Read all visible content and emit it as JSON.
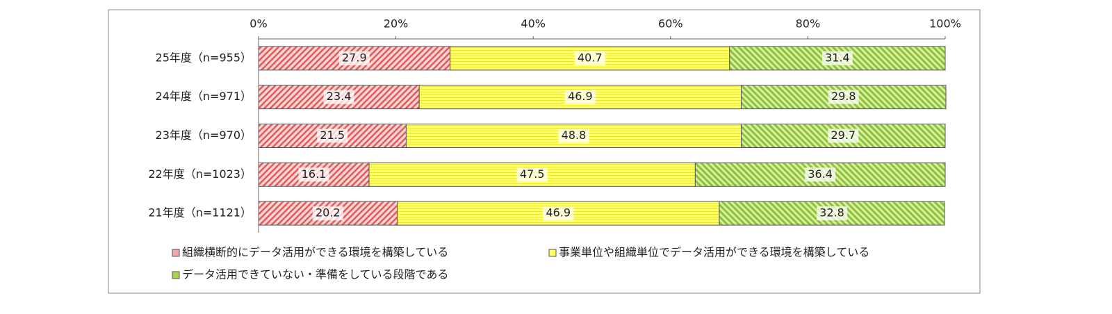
{
  "chart_data": {
    "type": "stacked-bar-horizontal",
    "categories": [
      "25年度（n=955）",
      "24年度（n=971）",
      "23年度（n=970）",
      "22年度（n=1023）",
      "21年度（n=1121）"
    ],
    "series": [
      {
        "name": "組織横断的にデータ活用ができる環境を構築している",
        "color": "#f4a6a6",
        "values": [
          27.9,
          23.4,
          21.5,
          16.1,
          20.2
        ]
      },
      {
        "name": "事業単位や組織単位でデータ活用ができる環境を構築している",
        "color": "#ffff66",
        "values": [
          40.7,
          46.9,
          48.8,
          47.5,
          46.9
        ]
      },
      {
        "name": "データ活用できていない・準備をしている段階である",
        "color": "#a6d64a",
        "values": [
          31.4,
          29.8,
          29.7,
          36.4,
          32.8
        ]
      }
    ],
    "xlim": [
      0,
      100
    ],
    "xticks": [
      {
        "value": 0,
        "label": "0%"
      },
      {
        "value": 20,
        "label": "20%"
      },
      {
        "value": 40,
        "label": "40%"
      },
      {
        "value": 60,
        "label": "60%"
      },
      {
        "value": 80,
        "label": "80%"
      },
      {
        "value": 100,
        "label": "100%"
      }
    ]
  }
}
